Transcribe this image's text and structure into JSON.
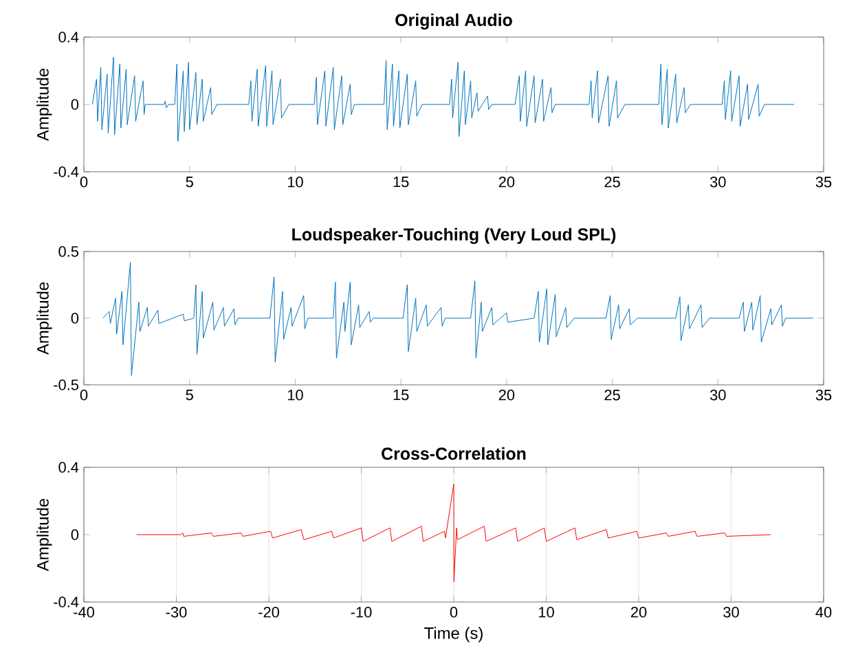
{
  "chart_data": [
    {
      "type": "line",
      "title": "Original Audio",
      "ylabel": "Amplitude",
      "color": "#0072bd",
      "xlim": [
        0,
        35
      ],
      "xticks": [
        0,
        5,
        10,
        15,
        20,
        25,
        30,
        35
      ],
      "ylim": [
        -0.4,
        0.4
      ],
      "yticks": [
        -0.4,
        0,
        0.4
      ],
      "x": [
        0.4,
        0.6,
        0.65,
        0.8,
        0.85,
        1.1,
        1.15,
        1.4,
        1.45,
        1.7,
        1.75,
        2.0,
        2.05,
        2.4,
        2.45,
        2.8,
        2.85,
        2.9,
        3.8,
        3.85,
        3.9,
        4.0,
        4.3,
        4.4,
        4.45,
        4.7,
        4.75,
        4.95,
        5.0,
        5.3,
        5.35,
        5.6,
        5.65,
        6.0,
        6.05,
        6.3,
        7.8,
        7.9,
        7.95,
        8.2,
        8.25,
        8.6,
        8.65,
        8.9,
        8.95,
        9.3,
        9.35,
        9.7,
        10.9,
        11.0,
        11.05,
        11.4,
        11.45,
        11.8,
        11.85,
        12.2,
        12.25,
        12.6,
        12.65,
        12.8,
        14.2,
        14.3,
        14.35,
        14.6,
        14.65,
        14.9,
        14.95,
        15.3,
        15.35,
        15.7,
        15.75,
        16.0,
        17.3,
        17.4,
        17.45,
        17.7,
        17.75,
        18.0,
        18.05,
        18.3,
        18.35,
        18.6,
        18.65,
        19.1,
        19.15,
        19.3,
        20.4,
        20.6,
        20.65,
        20.9,
        20.95,
        21.3,
        21.35,
        21.7,
        21.75,
        22.1,
        22.15,
        22.3,
        23.9,
        24.0,
        24.05,
        24.3,
        24.35,
        24.8,
        24.85,
        25.2,
        25.25,
        25.6,
        27.2,
        27.3,
        27.35,
        27.6,
        27.65,
        28.0,
        28.05,
        28.4,
        28.45,
        28.7,
        30.2,
        30.3,
        30.35,
        30.6,
        30.65,
        31.0,
        31.05,
        31.4,
        31.45,
        31.9,
        31.95,
        32.2,
        33.6
      ],
      "values": [
        0,
        0.15,
        -0.1,
        0.22,
        -0.15,
        0.18,
        -0.17,
        0.28,
        -0.18,
        0.24,
        -0.14,
        0.21,
        -0.12,
        0.17,
        -0.1,
        0.14,
        -0.06,
        0,
        0,
        0.02,
        -0.02,
        0,
        0,
        0.24,
        -0.22,
        0.2,
        -0.16,
        0.25,
        -0.15,
        0.19,
        -0.12,
        0.15,
        -0.1,
        0.1,
        -0.06,
        0,
        0,
        0.14,
        -0.1,
        0.21,
        -0.13,
        0.23,
        -0.13,
        0.2,
        -0.12,
        0.15,
        -0.08,
        0,
        0,
        0.16,
        -0.12,
        0.2,
        -0.13,
        0.22,
        -0.15,
        0.17,
        -0.12,
        0.12,
        -0.06,
        0,
        0,
        0.26,
        -0.15,
        0.24,
        -0.13,
        0.2,
        -0.14,
        0.18,
        -0.12,
        0.14,
        -0.07,
        0,
        0,
        0.15,
        -0.08,
        0.25,
        -0.19,
        0.2,
        -0.12,
        0.14,
        -0.08,
        0.07,
        -0.04,
        0.05,
        -0.03,
        0,
        0,
        0.17,
        -0.1,
        0.2,
        -0.13,
        0.17,
        -0.11,
        0.15,
        -0.1,
        0.1,
        -0.05,
        0,
        0,
        0.14,
        -0.08,
        0.2,
        -0.11,
        0.17,
        -0.13,
        0.14,
        -0.08,
        0,
        0,
        0.24,
        -0.12,
        0.21,
        -0.14,
        0.18,
        -0.11,
        0.1,
        -0.05,
        0,
        0,
        0.14,
        -0.09,
        0.2,
        -0.1,
        0.17,
        -0.13,
        0.12,
        -0.09,
        0.12,
        -0.07,
        0,
        0
      ]
    },
    {
      "type": "line",
      "title": "Loudspeaker-Touching (Very Loud SPL)",
      "ylabel": "Amplitude",
      "color": "#0072bd",
      "xlim": [
        0,
        35
      ],
      "xticks": [
        0,
        5,
        10,
        15,
        20,
        25,
        30,
        35
      ],
      "ylim": [
        -0.5,
        0.5
      ],
      "yticks": [
        -0.5,
        0,
        0.5
      ],
      "x": [
        0.9,
        1.2,
        1.25,
        1.5,
        1.55,
        1.8,
        1.85,
        2.2,
        2.25,
        2.6,
        2.65,
        3.0,
        3.05,
        3.5,
        3.55,
        4.7,
        4.75,
        5.2,
        5.3,
        5.35,
        5.6,
        5.65,
        6.1,
        6.15,
        6.6,
        6.65,
        7.1,
        7.15,
        7.3,
        8.8,
        9.0,
        9.05,
        9.4,
        9.45,
        9.8,
        9.85,
        10.4,
        10.45,
        10.6,
        11.8,
        11.9,
        11.95,
        12.3,
        12.35,
        12.6,
        12.65,
        13.0,
        13.05,
        13.5,
        13.55,
        13.7,
        15.1,
        15.3,
        15.35,
        15.7,
        15.75,
        16.2,
        16.25,
        16.9,
        16.95,
        17.1,
        18.3,
        18.5,
        18.55,
        18.8,
        18.85,
        19.3,
        19.35,
        20.0,
        20.05,
        21.3,
        21.5,
        21.55,
        21.9,
        21.95,
        22.3,
        22.35,
        22.8,
        22.85,
        23.2,
        24.7,
        24.9,
        24.95,
        25.3,
        25.35,
        25.8,
        25.85,
        26.2,
        28.0,
        28.2,
        28.25,
        28.6,
        28.65,
        29.2,
        29.25,
        29.6,
        31.0,
        31.2,
        31.25,
        31.6,
        31.65,
        32.0,
        32.05,
        32.5,
        32.55,
        33.0,
        33.05,
        33.2,
        34.5
      ],
      "values": [
        0,
        0.05,
        -0.04,
        0.15,
        -0.12,
        0.2,
        -0.2,
        0.42,
        -0.43,
        0.12,
        -0.1,
        0.08,
        -0.06,
        0.06,
        -0.04,
        0.03,
        -0.02,
        0,
        0.25,
        -0.27,
        0.2,
        -0.15,
        0.12,
        -0.09,
        0.08,
        -0.06,
        0.07,
        -0.05,
        0,
        0,
        0.31,
        -0.33,
        0.2,
        -0.16,
        0.08,
        -0.06,
        0.17,
        -0.08,
        0,
        0,
        0.27,
        -0.3,
        0.12,
        -0.1,
        0.27,
        -0.2,
        0.1,
        -0.07,
        0.05,
        -0.03,
        0,
        0,
        0.25,
        -0.25,
        0.15,
        -0.1,
        0.1,
        -0.06,
        0.08,
        -0.06,
        0,
        0,
        0.28,
        -0.3,
        0.12,
        -0.1,
        0.08,
        -0.05,
        0.04,
        -0.03,
        0,
        0.2,
        -0.18,
        0.22,
        -0.2,
        0.18,
        -0.14,
        0.08,
        -0.07,
        0,
        0,
        0.17,
        -0.16,
        0.1,
        -0.08,
        0.07,
        -0.05,
        0,
        0,
        0.16,
        -0.17,
        0.1,
        -0.08,
        0.1,
        -0.07,
        0,
        0,
        0.12,
        -0.1,
        0.12,
        -0.09,
        0.17,
        -0.18,
        0.07,
        -0.05,
        0.1,
        -0.06,
        0,
        0
      ]
    },
    {
      "type": "line",
      "title": "Cross-Correlation",
      "xlabel": "Time (s)",
      "ylabel": "Amplitude",
      "color": "#ff0000",
      "grid": "x",
      "xlim": [
        -40,
        40
      ],
      "xticks": [
        -40,
        -30,
        -20,
        -10,
        0,
        10,
        20,
        30,
        40
      ],
      "ylim": [
        -0.4,
        0.4
      ],
      "yticks": [
        -0.4,
        0,
        0.4
      ],
      "x": [
        -34.3,
        -29.5,
        -29.3,
        -29.2,
        -26.2,
        -26.0,
        -23.0,
        -22.8,
        -19.8,
        -19.6,
        -16.5,
        -16.2,
        -13.2,
        -13.0,
        -10.0,
        -9.8,
        -6.9,
        -6.7,
        -3.5,
        -3.3,
        -1.0,
        -0.9,
        0,
        0.02,
        0.3,
        0.4,
        3.3,
        3.5,
        6.7,
        6.9,
        9.8,
        10.0,
        13.1,
        13.3,
        16.5,
        16.7,
        19.8,
        20.0,
        23.0,
        23.2,
        26.1,
        26.3,
        29.3,
        29.5,
        34.3
      ],
      "values": [
        0,
        0,
        0.01,
        -0.01,
        0.01,
        -0.01,
        0.01,
        -0.01,
        0.02,
        -0.02,
        0.03,
        -0.03,
        0.02,
        -0.02,
        0.04,
        -0.04,
        0.04,
        -0.04,
        0.05,
        -0.04,
        0.02,
        -0.02,
        0.3,
        -0.28,
        0.04,
        -0.03,
        0.05,
        -0.04,
        0.04,
        -0.04,
        0.04,
        -0.04,
        0.04,
        -0.03,
        0.03,
        -0.02,
        0.02,
        -0.02,
        0.01,
        -0.01,
        0.02,
        -0.01,
        0.01,
        -0.01,
        0
      ]
    }
  ]
}
